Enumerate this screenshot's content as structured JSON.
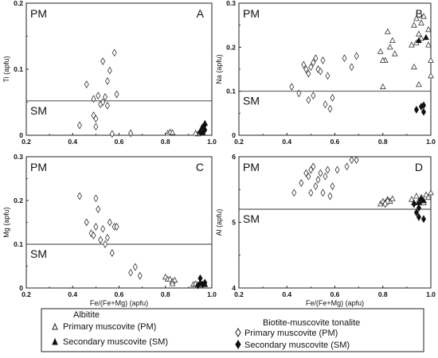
{
  "chart_data": [
    {
      "type": "scatter",
      "panel_label": "A",
      "region_labels": {
        "upper": "PM",
        "lower": "SM"
      },
      "ylabel": "Ti (apfu)",
      "xlabel": "",
      "xlim": [
        0.2,
        1.0
      ],
      "ylim": [
        0,
        0.2
      ],
      "xticks": [
        "0.2",
        "0.4",
        "0.6",
        "0.8",
        "1.0"
      ],
      "yticks": [
        "0",
        "0.1",
        "0.2"
      ],
      "yticks_values": [
        0,
        0.1,
        0.2
      ],
      "reference_line_y": 0.052,
      "series": [
        {
          "name": "Albitite Primary muscovite (PM)",
          "marker": "open-triangle",
          "points": [
            [
              0.81,
              0.003
            ],
            [
              0.82,
              0.005
            ],
            [
              0.83,
              0.004
            ],
            [
              0.94,
              0.002
            ],
            [
              0.93,
              0.003
            ],
            [
              0.95,
              0.004
            ]
          ]
        },
        {
          "name": "Albitite Secondary muscovite (SM)",
          "marker": "filled-triangle",
          "points": [
            [
              0.96,
              0.012
            ],
            [
              0.97,
              0.018
            ],
            [
              0.95,
              0.006
            ],
            [
              0.96,
              0.004
            ]
          ]
        },
        {
          "name": "Biotite-muscovite tonalite Primary muscovite (PM)",
          "marker": "open-diamond",
          "points": [
            [
              0.43,
              0.015
            ],
            [
              0.46,
              0.077
            ],
            [
              0.49,
              0.055
            ],
            [
              0.49,
              0.03
            ],
            [
              0.5,
              0.025
            ],
            [
              0.5,
              0.013
            ],
            [
              0.51,
              0.06
            ],
            [
              0.52,
              0.047
            ],
            [
              0.53,
              0.112
            ],
            [
              0.53,
              0.05
            ],
            [
              0.54,
              0.058
            ],
            [
              0.55,
              0.082
            ],
            [
              0.55,
              0.045
            ],
            [
              0.56,
              0.098
            ],
            [
              0.57,
              0.002
            ],
            [
              0.58,
              0.125
            ],
            [
              0.59,
              0.062
            ],
            [
              0.65,
              0.003
            ]
          ]
        },
        {
          "name": "Biotite-muscovite tonalite Secondary muscovite (SM)",
          "marker": "filled-diamond",
          "points": [
            [
              0.96,
              0.012
            ],
            [
              0.97,
              0.016
            ],
            [
              0.95,
              0.005
            ],
            [
              0.97,
              0.008
            ]
          ]
        }
      ]
    },
    {
      "type": "scatter",
      "panel_label": "B",
      "region_labels": {
        "upper": "PM",
        "lower": "SM"
      },
      "ylabel": "Na (apfu)",
      "xlabel": "",
      "xlim": [
        0.2,
        1.0
      ],
      "ylim": [
        0,
        0.3
      ],
      "xticks": [
        "0.2",
        "0.4",
        "0.6",
        "0.8",
        "1.0"
      ],
      "yticks": [
        "0",
        "0.1",
        "0.2",
        "0.3"
      ],
      "yticks_values": [
        0,
        0.1,
        0.2,
        0.3
      ],
      "reference_line_y": 0.1,
      "series": [
        {
          "name": "Albitite Primary muscovite (PM)",
          "marker": "open-triangle",
          "points": [
            [
              0.79,
              0.19
            ],
            [
              0.8,
              0.11
            ],
            [
              0.81,
              0.17
            ],
            [
              0.82,
              0.235
            ],
            [
              0.83,
              0.2
            ],
            [
              0.84,
              0.215
            ],
            [
              0.85,
              0.185
            ],
            [
              0.8,
              0.17
            ],
            [
              0.92,
              0.205
            ],
            [
              0.93,
              0.155
            ],
            [
              0.93,
              0.25
            ],
            [
              0.94,
              0.265
            ],
            [
              0.95,
              0.23
            ],
            [
              0.94,
              0.21
            ],
            [
              0.96,
              0.22
            ],
            [
              0.97,
              0.27
            ],
            [
              0.95,
              0.115
            ],
            [
              0.99,
              0.24
            ],
            [
              1.0,
              0.17
            ],
            [
              0.99,
              0.205
            ],
            [
              1.0,
              0.135
            ],
            [
              0.96,
              0.255
            ]
          ]
        },
        {
          "name": "Albitite Secondary muscovite (SM)",
          "marker": "filled-triangle",
          "points": [
            [
              0.95,
              0.215
            ],
            [
              0.98,
              0.222
            ]
          ]
        },
        {
          "name": "Biotite-muscovite tonalite Primary muscovite (PM)",
          "marker": "open-diamond",
          "points": [
            [
              0.42,
              0.11
            ],
            [
              0.45,
              0.095
            ],
            [
              0.47,
              0.16
            ],
            [
              0.48,
              0.15
            ],
            [
              0.49,
              0.14
            ],
            [
              0.49,
              0.08
            ],
            [
              0.5,
              0.155
            ],
            [
              0.51,
              0.165
            ],
            [
              0.51,
              0.09
            ],
            [
              0.52,
              0.175
            ],
            [
              0.53,
              0.15
            ],
            [
              0.54,
              0.145
            ],
            [
              0.55,
              0.17
            ],
            [
              0.56,
              0.07
            ],
            [
              0.57,
              0.135
            ],
            [
              0.58,
              0.06
            ],
            [
              0.59,
              0.085
            ],
            [
              0.64,
              0.175
            ],
            [
              0.67,
              0.155
            ],
            [
              0.69,
              0.18
            ]
          ]
        },
        {
          "name": "Biotite-muscovite tonalite Secondary muscovite (SM)",
          "marker": "filled-diamond",
          "points": [
            [
              0.94,
              0.058
            ],
            [
              0.96,
              0.065
            ],
            [
              0.97,
              0.053
            ],
            [
              0.97,
              0.068
            ]
          ]
        }
      ]
    },
    {
      "type": "scatter",
      "panel_label": "C",
      "region_labels": {
        "upper": "PM",
        "lower": "SM"
      },
      "ylabel": "Mg (apfu)",
      "xlabel": "Fe/(Fe+Mg) (apfu)",
      "xlim": [
        0.2,
        1.0
      ],
      "ylim": [
        0,
        0.3
      ],
      "xticks": [
        "0.2",
        "0.4",
        "0.6",
        "0.8",
        "1.0"
      ],
      "yticks": [
        "0",
        "0.1",
        "0.2",
        "0.3"
      ],
      "yticks_values": [
        0,
        0.1,
        0.2,
        0.3
      ],
      "reference_line_y": 0.1,
      "series": [
        {
          "name": "Albitite Primary muscovite (PM)",
          "marker": "open-triangle",
          "points": [
            [
              0.8,
              0.025
            ],
            [
              0.81,
              0.02
            ],
            [
              0.82,
              0.02
            ],
            [
              0.83,
              0.015
            ],
            [
              0.84,
              0.018
            ],
            [
              0.83,
              0.01
            ],
            [
              0.92,
              0.008
            ],
            [
              0.93,
              0.01
            ],
            [
              0.94,
              0.005
            ],
            [
              0.95,
              0.012
            ],
            [
              0.96,
              0.008
            ]
          ]
        },
        {
          "name": "Albitite Secondary muscovite (SM)",
          "marker": "filled-triangle",
          "points": [
            [
              0.95,
              0.012
            ],
            [
              0.97,
              0.008
            ]
          ]
        },
        {
          "name": "Biotite-muscovite tonalite Primary muscovite (PM)",
          "marker": "open-diamond",
          "points": [
            [
              0.43,
              0.21
            ],
            [
              0.46,
              0.15
            ],
            [
              0.48,
              0.125
            ],
            [
              0.49,
              0.12
            ],
            [
              0.5,
              0.14
            ],
            [
              0.5,
              0.205
            ],
            [
              0.51,
              0.18
            ],
            [
              0.52,
              0.11
            ],
            [
              0.53,
              0.135
            ],
            [
              0.54,
              0.1
            ],
            [
              0.55,
              0.115
            ],
            [
              0.56,
              0.15
            ],
            [
              0.57,
              0.08
            ],
            [
              0.58,
              0.14
            ],
            [
              0.59,
              0.14
            ],
            [
              0.65,
              0.035
            ],
            [
              0.67,
              0.048
            ],
            [
              0.69,
              0.028
            ]
          ]
        },
        {
          "name": "Biotite-muscovite tonalite Secondary muscovite (SM)",
          "marker": "filled-diamond",
          "points": [
            [
              0.95,
              0.022
            ],
            [
              0.96,
              0.008
            ],
            [
              0.97,
              0.012
            ],
            [
              0.94,
              0.006
            ]
          ]
        }
      ]
    },
    {
      "type": "scatter",
      "panel_label": "D",
      "region_labels": {
        "upper": "PM",
        "lower": "SM"
      },
      "ylabel": "Al (apfu)",
      "xlabel": "Fe/(Fe+Mg) (apfu)",
      "xlim": [
        0.2,
        1.0
      ],
      "ylim": [
        4,
        6
      ],
      "xticks": [
        "0.2",
        "0.4",
        "0.6",
        "0.8",
        "1.0"
      ],
      "yticks": [
        "4",
        "5",
        "6"
      ],
      "yticks_values": [
        4,
        5,
        6
      ],
      "reference_line_y": 5.2,
      "series": [
        {
          "name": "Albitite Primary muscovite (PM)",
          "marker": "open-triangle",
          "points": [
            [
              0.79,
              5.28
            ],
            [
              0.8,
              5.32
            ],
            [
              0.81,
              5.3
            ],
            [
              0.82,
              5.35
            ],
            [
              0.83,
              5.32
            ],
            [
              0.84,
              5.36
            ],
            [
              0.92,
              5.35
            ],
            [
              0.93,
              5.3
            ],
            [
              0.94,
              5.4
            ],
            [
              0.95,
              5.33
            ],
            [
              0.96,
              5.38
            ],
            [
              0.97,
              5.3
            ],
            [
              0.98,
              5.42
            ],
            [
              0.99,
              5.38
            ],
            [
              1.0,
              5.45
            ]
          ]
        },
        {
          "name": "Albitite Secondary muscovite (SM)",
          "marker": "filled-triangle",
          "points": [
            [
              0.95,
              5.3
            ],
            [
              0.97,
              5.33
            ]
          ]
        },
        {
          "name": "Biotite-muscovite tonalite Primary muscovite (PM)",
          "marker": "open-diamond",
          "points": [
            [
              0.43,
              5.45
            ],
            [
              0.46,
              5.6
            ],
            [
              0.48,
              5.75
            ],
            [
              0.49,
              5.7
            ],
            [
              0.5,
              5.8
            ],
            [
              0.5,
              5.45
            ],
            [
              0.51,
              5.85
            ],
            [
              0.52,
              5.55
            ],
            [
              0.53,
              5.65
            ],
            [
              0.54,
              5.75
            ],
            [
              0.55,
              5.45
            ],
            [
              0.56,
              5.7
            ],
            [
              0.57,
              5.8
            ],
            [
              0.58,
              5.4
            ],
            [
              0.59,
              5.55
            ],
            [
              0.61,
              5.8
            ],
            [
              0.65,
              5.85
            ],
            [
              0.67,
              5.95
            ],
            [
              0.69,
              5.95
            ],
            [
              0.82,
              5.32
            ],
            [
              0.81,
              5.28
            ]
          ]
        },
        {
          "name": "Biotite-muscovite tonalite Secondary muscovite (SM)",
          "marker": "filled-diamond",
          "points": [
            [
              0.94,
              5.15
            ],
            [
              0.95,
              5.22
            ],
            [
              0.95,
              5.08
            ],
            [
              0.97,
              5.05
            ],
            [
              0.96,
              5.35
            ],
            [
              0.93,
              5.28
            ]
          ]
        }
      ]
    }
  ],
  "legend": {
    "group1_title": "Albitite",
    "group2_title": "Biotite-muscovite tonalite",
    "items": [
      {
        "label": "Primary muscovite (PM)",
        "marker": "open-triangle"
      },
      {
        "label": "Secondary muscovite (SM)",
        "marker": "filled-triangle"
      },
      {
        "label": "Primary muscovite (PM)",
        "marker": "open-diamond"
      },
      {
        "label": "Secondary muscovite (SM)",
        "marker": "filled-diamond"
      }
    ]
  }
}
